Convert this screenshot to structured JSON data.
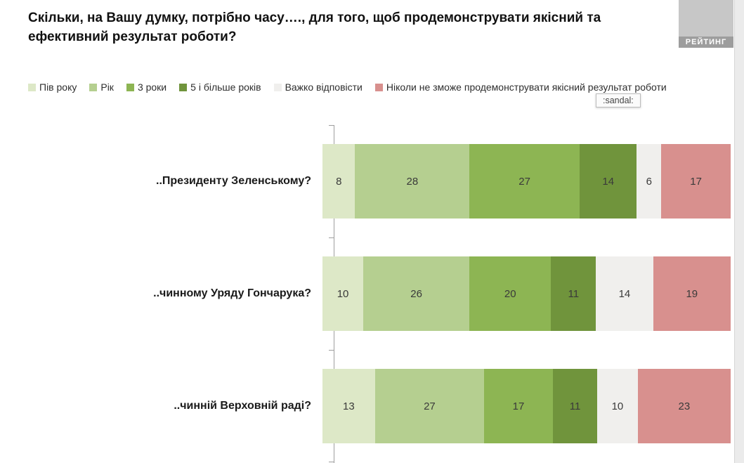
{
  "header": {
    "title": "Скільки, на Вашу думку, потрібно часу…., для того, щоб продемонструвати якісний та ефективний результат роботи?",
    "logo_text": "РЕЙТИНГ"
  },
  "tooltip": {
    "text": ":sandal:"
  },
  "chart_data": {
    "type": "bar",
    "orientation": "horizontal_stacked",
    "unit": "percent",
    "xlim": [
      0,
      100
    ],
    "legend_position": "top",
    "categories": [
      "..Президенту Зеленському?",
      "..чинному Уряду Гончарука?",
      "..чинній Верховній раді?"
    ],
    "series": [
      {
        "name": "Пів року",
        "color": "#dde8c7",
        "values": [
          8,
          10,
          13
        ]
      },
      {
        "name": "Рік",
        "color": "#b5cf90",
        "values": [
          28,
          26,
          27
        ]
      },
      {
        "name": "3 роки",
        "color": "#8db553",
        "values": [
          27,
          20,
          17
        ]
      },
      {
        "name": "5 і більше років",
        "color": "#70943c",
        "values": [
          14,
          11,
          11
        ]
      },
      {
        "name": "Важко відповісти",
        "color": "#f0efed",
        "values": [
          6,
          14,
          10
        ]
      },
      {
        "name": "Ніколи не зможе продемонструвати якісний результат роботи",
        "color": "#d8908e",
        "values": [
          17,
          19,
          23
        ]
      }
    ]
  }
}
